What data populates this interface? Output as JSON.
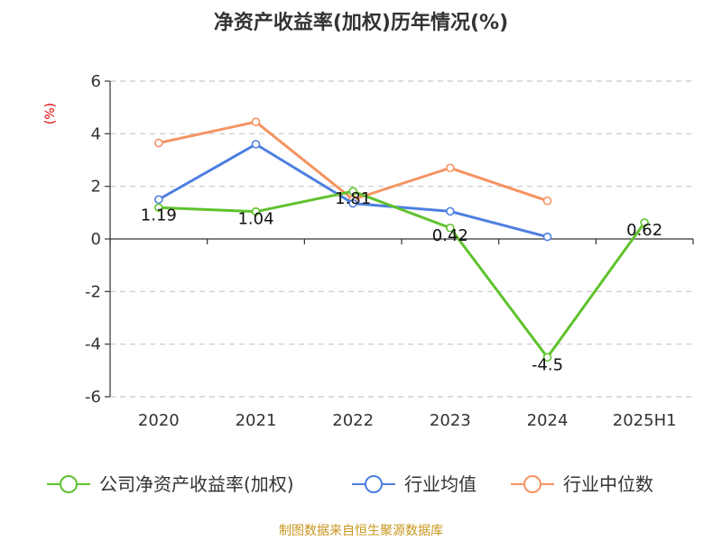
{
  "chart_data": {
    "type": "line",
    "title": "净资产收益率(加权)历年情况(%)",
    "unit_label": "(%)",
    "categories": [
      "2020",
      "2021",
      "2022",
      "2023",
      "2024",
      "2025H1"
    ],
    "ylim": [
      -6,
      6
    ],
    "yticks": [
      -6,
      -4,
      -2,
      0,
      2,
      4,
      6
    ],
    "grid": true,
    "legend_position": "bottom",
    "series": [
      {
        "name": "公司净资产收益率(加权)",
        "color": "#5fc22d",
        "values": [
          1.19,
          1.04,
          1.81,
          0.42,
          -4.5,
          0.62
        ],
        "labels": [
          "1.19",
          "1.04",
          "1.81",
          "0.42",
          "-4.5",
          "0.62"
        ]
      },
      {
        "name": "行业均值",
        "color": "#4e7fe0",
        "values": [
          1.5,
          3.6,
          1.35,
          1.05,
          0.08,
          null
        ]
      },
      {
        "name": "行业中位数",
        "color": "#f59362",
        "values": [
          3.65,
          4.45,
          1.5,
          2.7,
          1.45,
          null
        ]
      }
    ]
  },
  "source": "制图数据来自恒生聚源数据库"
}
